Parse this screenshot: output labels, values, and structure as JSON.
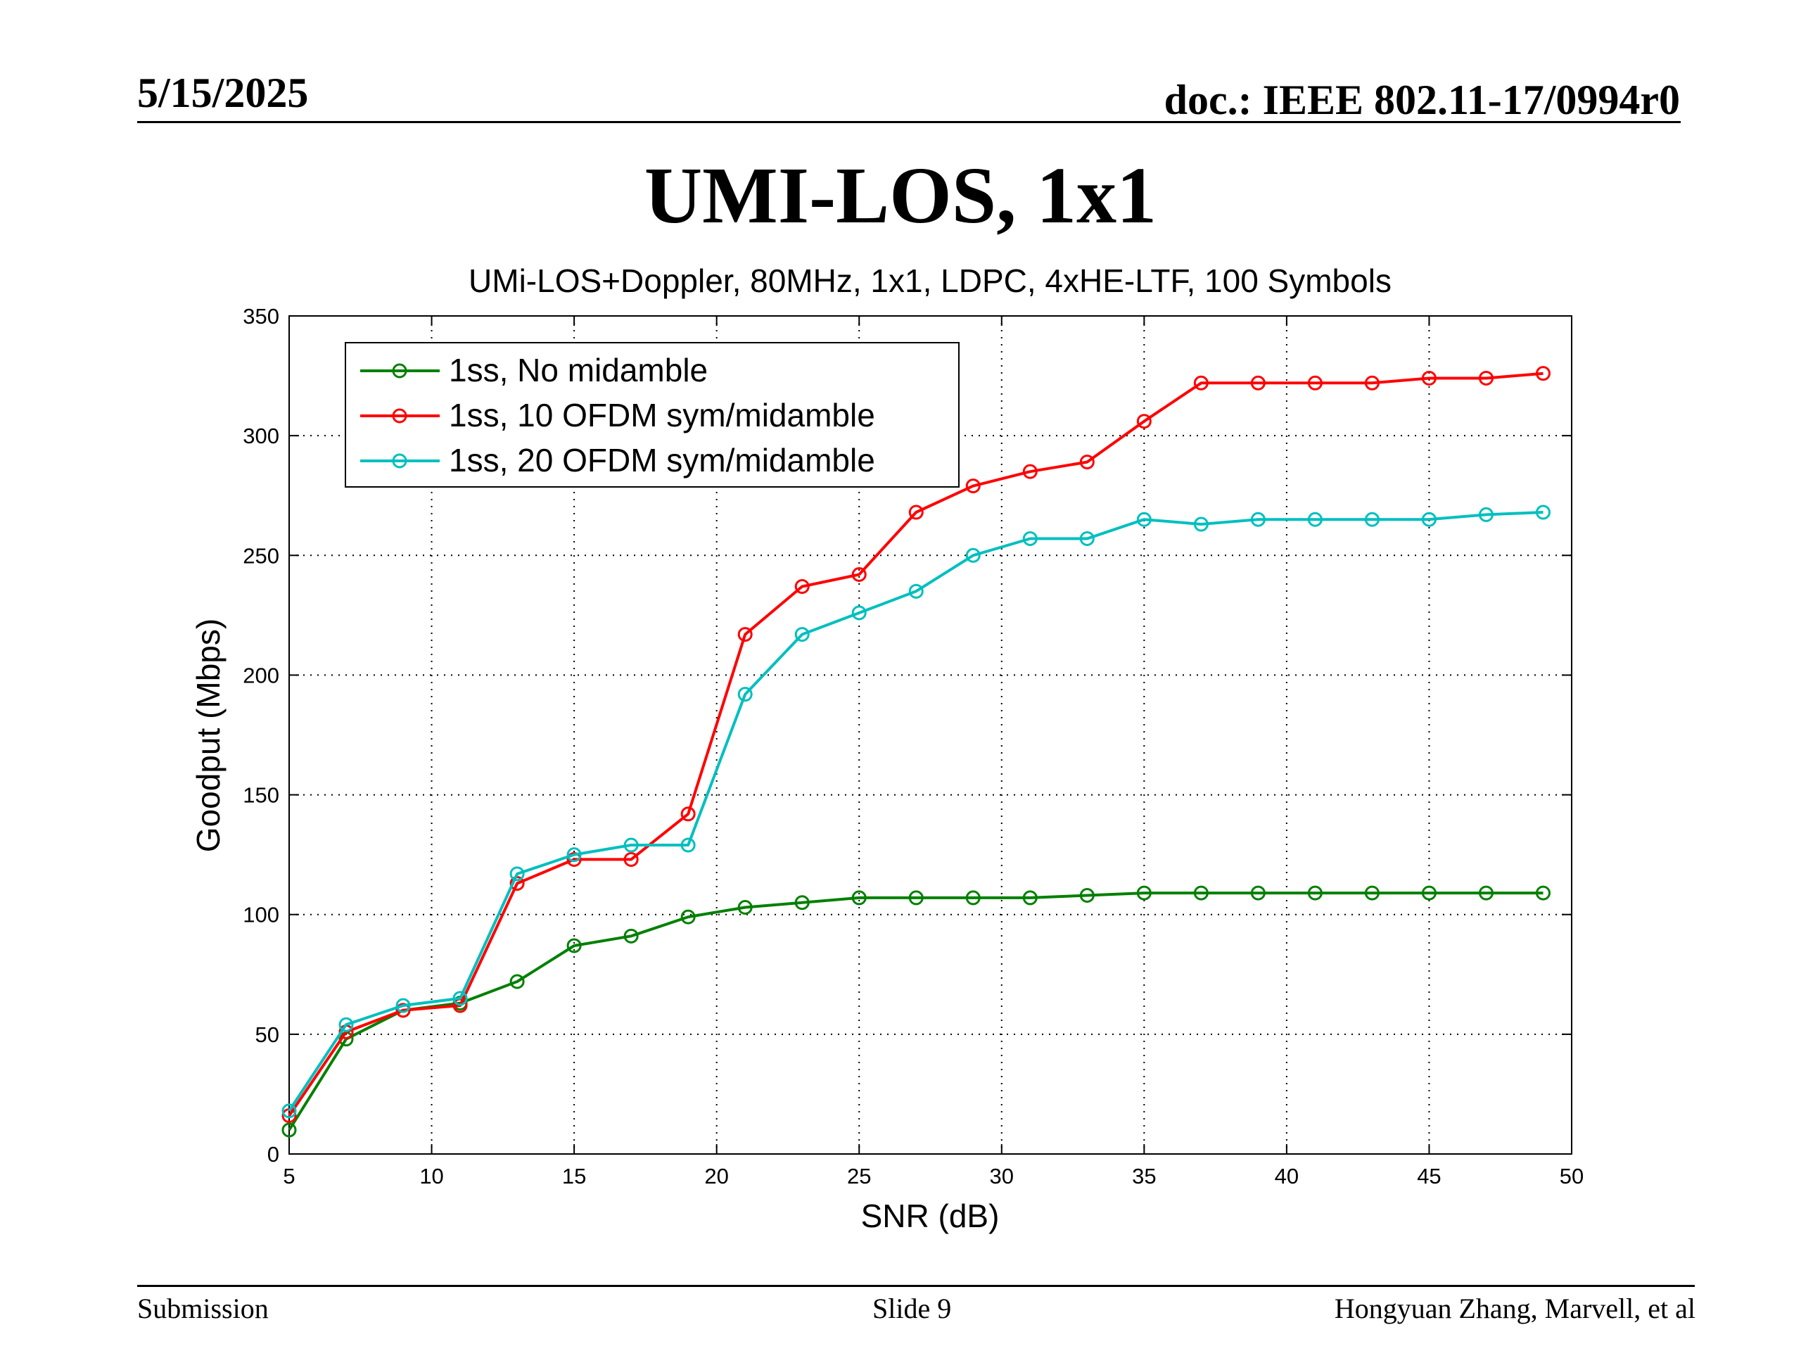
{
  "header": {
    "date": "5/15/2025",
    "doc": "doc.: IEEE 802.11-17/0994r0"
  },
  "slide_title": "UMI-LOS, 1x1",
  "footer": {
    "left": "Submission",
    "center": "Slide 9",
    "right": "Hongyuan Zhang, Marvell, et al"
  },
  "chart_data": {
    "type": "line",
    "title": "UMi-LOS+Doppler, 80MHz, 1x1, LDPC, 4xHE-LTF, 100 Symbols",
    "xlabel": "SNR (dB)",
    "ylabel": "Goodput (Mbps)",
    "xlim": [
      5,
      50
    ],
    "ylim": [
      0,
      350
    ],
    "xticks": [
      5,
      10,
      15,
      20,
      25,
      30,
      35,
      40,
      45,
      50
    ],
    "yticks": [
      0,
      50,
      100,
      150,
      200,
      250,
      300,
      350
    ],
    "grid": true,
    "grid_style": "dotted",
    "marker": "circle",
    "legend_position": "top-left",
    "x": [
      5,
      7,
      9,
      11,
      13,
      15,
      17,
      19,
      21,
      23,
      25,
      27,
      29,
      31,
      33,
      35,
      37,
      39,
      41,
      43,
      45,
      47,
      49
    ],
    "series": [
      {
        "name": "1ss, No midamble",
        "color": "#008000",
        "values": [
          10,
          48,
          60,
          63,
          72,
          87,
          91,
          99,
          103,
          105,
          107,
          107,
          107,
          107,
          108,
          109,
          109,
          109,
          109,
          109,
          109,
          109,
          109
        ]
      },
      {
        "name": "1ss, 10 OFDM sym/midamble",
        "color": "#ff0000",
        "values": [
          16,
          51,
          60,
          62,
          113,
          123,
          123,
          142,
          217,
          237,
          242,
          268,
          279,
          285,
          289,
          306,
          322,
          322,
          322,
          322,
          324,
          324,
          326
        ]
      },
      {
        "name": "1ss, 20 OFDM sym/midamble",
        "color": "#00bfbf",
        "values": [
          18,
          54,
          62,
          65,
          117,
          125,
          129,
          129,
          192,
          217,
          226,
          235,
          250,
          257,
          257,
          265,
          263,
          265,
          265,
          265,
          265,
          267,
          268
        ]
      }
    ]
  }
}
